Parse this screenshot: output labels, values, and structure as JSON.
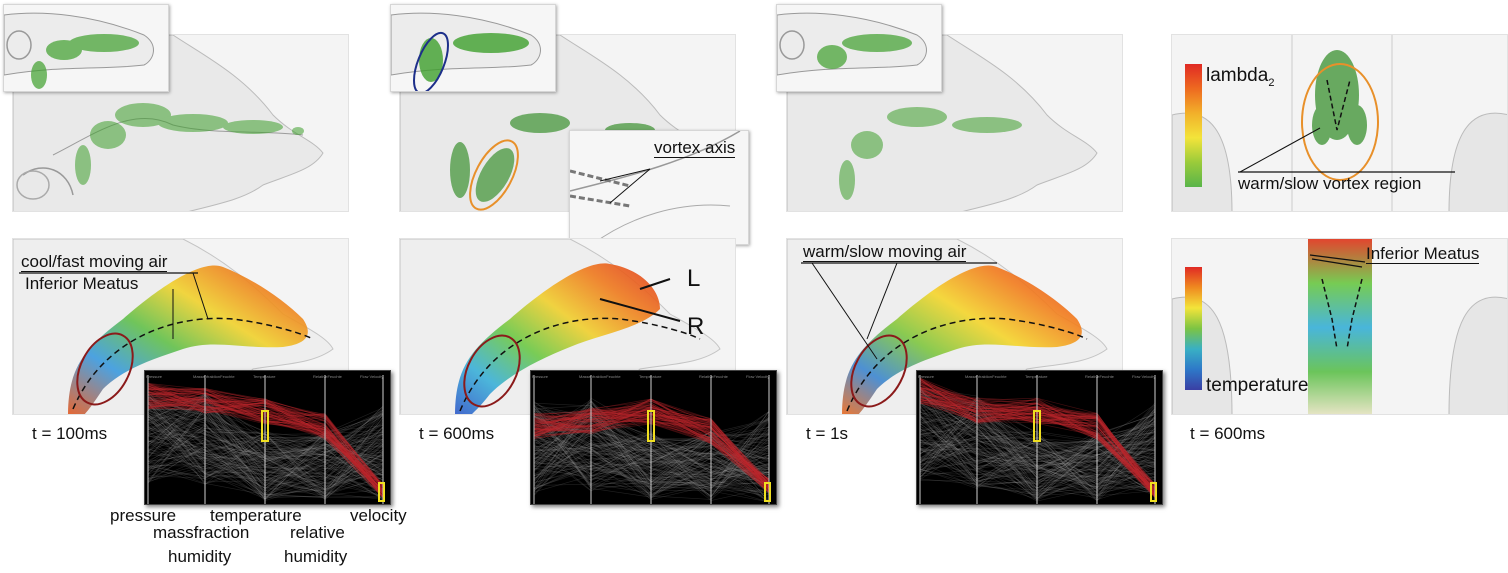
{
  "timestamps": {
    "t1": "t = 100ms",
    "t2": "t = 600ms",
    "t3": "t = 1s",
    "t4": "t = 600ms"
  },
  "annotations": {
    "cool_fast": "cool/fast moving air",
    "inferior_meatus_left": "Inferior Meatus",
    "vortex_axis": "vortex axis",
    "label_L": "L",
    "label_R": "R",
    "warm_slow_moving": "warm/slow moving air",
    "warm_slow_vortex": "warm/slow vortex region",
    "inferior_meatus_right": "Inferior Meatus"
  },
  "colorbars": {
    "lambda_base": "lambda",
    "lambda_sub": "2",
    "temperature": "temperature"
  },
  "axes": {
    "pressure": "pressure",
    "massfraction": "massfraction",
    "humidity1": "humidity",
    "temperature": "temperature",
    "relative": "relative",
    "humidity2": "humidity",
    "velocity": "velocity"
  },
  "pc_headers": [
    "Pressure",
    "MassenfraktionFeuchte",
    "Temperature",
    "RelativeFeuchte",
    "Flow Velocity"
  ],
  "colors": {
    "orange_ellipse": "#e8902a",
    "blue_ellipse": "#1d2f8a",
    "red_ellipse": "#8b1a1a",
    "brush": "#f0e020",
    "pc_red": "#c0282d"
  }
}
